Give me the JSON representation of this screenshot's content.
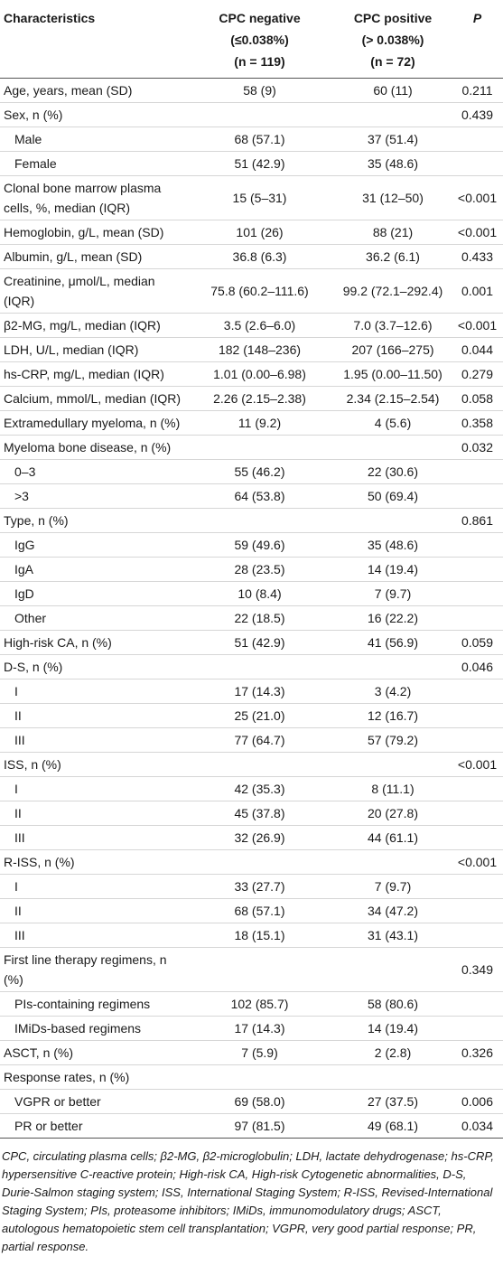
{
  "table": {
    "header": [
      [
        "Characteristics"
      ],
      [
        "CPC negative",
        "(≤0.038%)",
        "(n = 119)"
      ],
      [
        "CPC positive",
        "(> 0.038%)",
        "(n = 72)"
      ],
      [
        "P"
      ]
    ],
    "rows": [
      {
        "cells": [
          "Age, years, mean (SD)",
          "58 (9)",
          "60 (11)",
          "0.211"
        ]
      },
      {
        "cells": [
          "Sex, n (%)",
          null,
          null,
          "0.439"
        ]
      },
      {
        "cells": [
          "Male",
          "68 (57.1)",
          "37 (51.4)",
          null
        ],
        "indent": true
      },
      {
        "cells": [
          "Female",
          "51 (42.9)",
          "35 (48.6)",
          null
        ],
        "indent": true
      },
      {
        "cells": [
          "Clonal bone marrow plasma cells, %, median (IQR)",
          "15 (5–31)",
          "31 (12–50)",
          "<0.001"
        ]
      },
      {
        "cells": [
          "Hemoglobin, g/L, mean (SD)",
          "101 (26)",
          "88 (21)",
          "<0.001"
        ]
      },
      {
        "cells": [
          "Albumin, g/L, mean (SD)",
          "36.8 (6.3)",
          "36.2 (6.1)",
          "0.433"
        ]
      },
      {
        "cells": [
          "Creatinine, μmol/L, median (IQR)",
          "75.8 (60.2–111.6)",
          "99.2 (72.1–292.4)",
          "0.001"
        ]
      },
      {
        "cells": [
          "β2-MG, mg/L, median (IQR)",
          "3.5 (2.6–6.0)",
          "7.0 (3.7–12.6)",
          "<0.001"
        ]
      },
      {
        "cells": [
          "LDH, U/L, median (IQR)",
          "182 (148–236)",
          "207 (166–275)",
          "0.044"
        ]
      },
      {
        "cells": [
          "hs-CRP, mg/L, median (IQR)",
          "1.01 (0.00–6.98)",
          "1.95 (0.00–11.50)",
          "0.279"
        ]
      },
      {
        "cells": [
          "Calcium, mmol/L, median (IQR)",
          "2.26 (2.15–2.38)",
          "2.34 (2.15–2.54)",
          "0.058"
        ]
      },
      {
        "cells": [
          "Extramedullary myeloma, n (%)",
          "11 (9.2)",
          "4 (5.6)",
          "0.358"
        ]
      },
      {
        "cells": [
          "Myeloma bone disease, n (%)",
          null,
          null,
          "0.032"
        ]
      },
      {
        "cells": [
          "0–3",
          "55 (46.2)",
          "22 (30.6)",
          null
        ],
        "indent": true
      },
      {
        "cells": [
          ">3",
          "64 (53.8)",
          "50 (69.4)",
          null
        ],
        "indent": true
      },
      {
        "cells": [
          "Type, n (%)",
          null,
          null,
          "0.861"
        ]
      },
      {
        "cells": [
          "IgG",
          "59 (49.6)",
          "35 (48.6)",
          null
        ],
        "indent": true
      },
      {
        "cells": [
          "IgA",
          "28 (23.5)",
          "14 (19.4)",
          null
        ],
        "indent": true
      },
      {
        "cells": [
          "IgD",
          "10 (8.4)",
          "7 (9.7)",
          null
        ],
        "indent": true
      },
      {
        "cells": [
          "Other",
          "22 (18.5)",
          "16 (22.2)",
          null
        ],
        "indent": true
      },
      {
        "cells": [
          "High-risk CA, n (%)",
          "51 (42.9)",
          "41 (56.9)",
          "0.059"
        ]
      },
      {
        "cells": [
          "D-S, n (%)",
          null,
          null,
          "0.046"
        ]
      },
      {
        "cells": [
          "I",
          "17 (14.3)",
          "3 (4.2)",
          null
        ],
        "indent": true
      },
      {
        "cells": [
          "II",
          "25 (21.0)",
          "12 (16.7)",
          null
        ],
        "indent": true
      },
      {
        "cells": [
          "III",
          "77 (64.7)",
          "57 (79.2)",
          null
        ],
        "indent": true
      },
      {
        "cells": [
          "ISS, n (%)",
          null,
          null,
          "<0.001"
        ]
      },
      {
        "cells": [
          "I",
          "42 (35.3)",
          "8 (11.1)",
          null
        ],
        "indent": true
      },
      {
        "cells": [
          "II",
          "45 (37.8)",
          "20 (27.8)",
          null
        ],
        "indent": true
      },
      {
        "cells": [
          "III",
          "32 (26.9)",
          "44 (61.1)",
          null
        ],
        "indent": true
      },
      {
        "cells": [
          "R-ISS, n (%)",
          null,
          null,
          "<0.001"
        ]
      },
      {
        "cells": [
          "I",
          "33 (27.7)",
          "7 (9.7)",
          null
        ],
        "indent": true
      },
      {
        "cells": [
          "II",
          "68 (57.1)",
          "34 (47.2)",
          null
        ],
        "indent": true
      },
      {
        "cells": [
          "III",
          "18 (15.1)",
          "31 (43.1)",
          null
        ],
        "indent": true
      },
      {
        "cells": [
          "First line therapy regimens, n (%)",
          null,
          null,
          "0.349"
        ]
      },
      {
        "cells": [
          "PIs-containing regimens",
          "102 (85.7)",
          "58 (80.6)",
          null
        ],
        "indent": true
      },
      {
        "cells": [
          "IMiDs-based regimens",
          "17 (14.3)",
          "14 (19.4)",
          null
        ],
        "indent": true
      },
      {
        "cells": [
          "ASCT, n (%)",
          "7 (5.9)",
          "2 (2.8)",
          "0.326"
        ]
      },
      {
        "cells": [
          "Response rates, n (%)",
          null,
          null,
          null
        ]
      },
      {
        "cells": [
          "VGPR or better",
          "69 (58.0)",
          "27 (37.5)",
          "0.006"
        ],
        "indent": true
      },
      {
        "cells": [
          "PR or better",
          "97 (81.5)",
          "49 (68.1)",
          "0.034"
        ],
        "indent": true
      }
    ],
    "footnote": "CPC, circulating plasma cells; β2-MG, β2-microglobulin; LDH, lactate dehydrogenase; hs-CRP, hypersensitive C-reactive protein; High-risk CA, High-risk Cytogenetic abnormalities, D-S, Durie-Salmon staging system; ISS, International Staging System; R-ISS, Revised-International Staging System; PIs, proteasome inhibitors; IMiDs, immunomodulatory drugs; ASCT, autologous hematopoietic stem cell transplantation; VGPR, very good partial response; PR, partial response."
  }
}
